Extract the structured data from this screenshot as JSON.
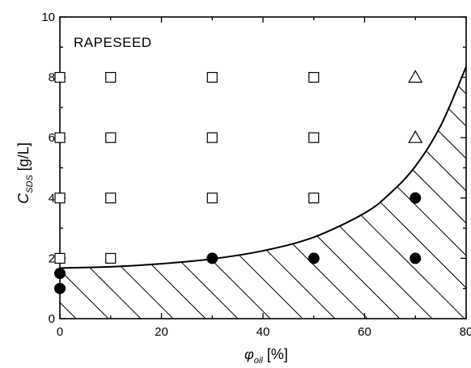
{
  "chart_data": {
    "type": "scatter",
    "annotation": "RAPESEED",
    "xlabel": {
      "symbol": "φ",
      "subscript": "oil",
      "unit": " [%]"
    },
    "ylabel": {
      "symbol": "C",
      "subscript": "SDS",
      "unit": " [g/L]"
    },
    "xlim": [
      0,
      80
    ],
    "ylim": [
      0,
      10
    ],
    "x_ticks": [
      0,
      20,
      40,
      60,
      80
    ],
    "y_ticks": [
      0,
      2,
      4,
      6,
      8,
      10
    ],
    "grid": false,
    "series": [
      {
        "marker": "square-open",
        "points": [
          {
            "x": 0,
            "y": 8
          },
          {
            "x": 10,
            "y": 8
          },
          {
            "x": 30,
            "y": 8
          },
          {
            "x": 50,
            "y": 8
          },
          {
            "x": 0,
            "y": 6
          },
          {
            "x": 10,
            "y": 6
          },
          {
            "x": 30,
            "y": 6
          },
          {
            "x": 50,
            "y": 6
          },
          {
            "x": 0,
            "y": 4
          },
          {
            "x": 10,
            "y": 4
          },
          {
            "x": 30,
            "y": 4
          },
          {
            "x": 50,
            "y": 4
          },
          {
            "x": 0,
            "y": 2
          },
          {
            "x": 10,
            "y": 2
          }
        ]
      },
      {
        "marker": "triangle-open",
        "points": [
          {
            "x": 70,
            "y": 8
          },
          {
            "x": 70,
            "y": 6
          }
        ]
      },
      {
        "marker": "circle-filled",
        "points": [
          {
            "x": 0,
            "y": 1.5
          },
          {
            "x": 0,
            "y": 1
          },
          {
            "x": 30,
            "y": 2
          },
          {
            "x": 50,
            "y": 2
          },
          {
            "x": 70,
            "y": 4
          },
          {
            "x": 70,
            "y": 2
          }
        ]
      }
    ],
    "boundary_curve": {
      "shaded_region": "below",
      "points": [
        {
          "x": 0,
          "y": 1.68
        },
        {
          "x": 10,
          "y": 1.72
        },
        {
          "x": 20,
          "y": 1.82
        },
        {
          "x": 30,
          "y": 1.98
        },
        {
          "x": 40,
          "y": 2.25
        },
        {
          "x": 50,
          "y": 2.7
        },
        {
          "x": 60,
          "y": 3.5
        },
        {
          "x": 65,
          "y": 4.15
        },
        {
          "x": 70,
          "y": 5.05
        },
        {
          "x": 75,
          "y": 6.4
        },
        {
          "x": 80,
          "y": 8.35
        }
      ]
    }
  }
}
